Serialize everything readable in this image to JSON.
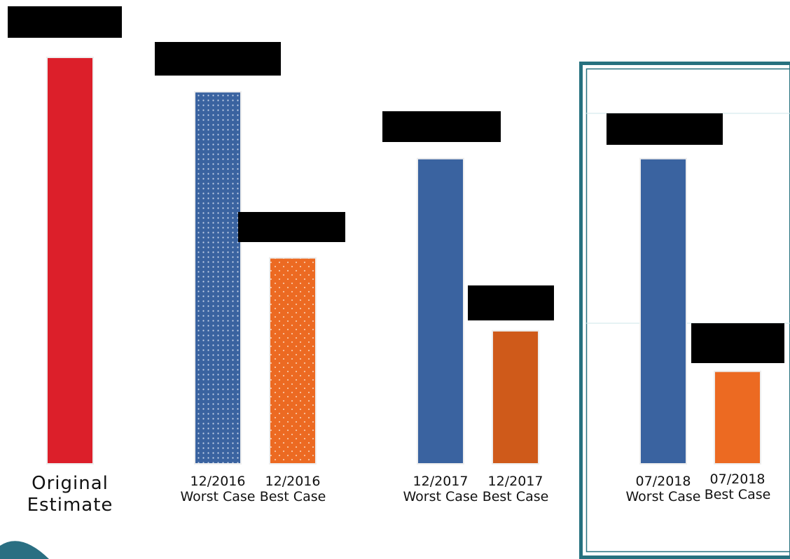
{
  "chart_data": {
    "type": "bar",
    "title": "",
    "xlabel": "",
    "ylabel": "",
    "ylim": [
      0,
      100
    ],
    "value_labels": "redacted",
    "grid": false,
    "legend": "none",
    "categories": [
      "Original\nEstimate",
      "12/2016\nWorst Case",
      "12/2016\nBest Case",
      "12/2017\nWorst Case",
      "12/2017\nBest Case",
      "07/2018\nWorst Case",
      "07/2018\nBest Case"
    ],
    "values": [
      100,
      91.5,
      50.5,
      75,
      32.5,
      75,
      22.5
    ],
    "bar_colors": [
      "#dc1f2a",
      "#3a63a0",
      "#ec6a22",
      "#3a63a0",
      "#cf5a1a",
      "#3a63a0",
      "#ec6a22"
    ],
    "bar_pattern": [
      "solid",
      "dotted",
      "dotted",
      "solid",
      "solid",
      "solid",
      "solid"
    ],
    "highlighted_group": "07/2018",
    "highlight_border_color": "#26717f"
  }
}
